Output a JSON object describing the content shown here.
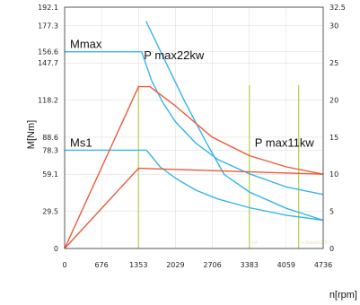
{
  "chart_data": {
    "type": "line",
    "xlabel": "n[rpm]",
    "ylabel": "M[Nm]",
    "y2label": "",
    "x_ticks": [
      0,
      676,
      1353,
      2029,
      2706,
      3383,
      4059,
      4736
    ],
    "xlim": [
      0,
      4736
    ],
    "y_ticks": [
      0,
      29.5,
      59.1,
      78.3,
      88.6,
      118.2,
      147.7,
      156.6,
      177.3,
      192.1
    ],
    "ylim": [
      0,
      192.1
    ],
    "y2_ticks": [
      0,
      5,
      10,
      15,
      20,
      25,
      30,
      32.5
    ],
    "y2lim": [
      0,
      32.5
    ],
    "grid": true,
    "colors": {
      "torque": "#34b6e8",
      "power": "#ec5a3c",
      "marker": "#b8d45c",
      "frame": "#333333",
      "grid": "#d9d9d9"
    },
    "annotations": [
      {
        "text": "Mmax",
        "x": 0,
        "y": 156.6
      },
      {
        "text": "P max22kw",
        "x": 1353,
        "y": 147.7
      },
      {
        "text": "Ms1",
        "x": 0,
        "y": 78.3
      },
      {
        "text": "P max11kw",
        "x": 3383,
        "y": 78.3
      }
    ],
    "marker_labels": [
      {
        "text": "n2",
        "x": 3383
      },
      {
        "text": "n max/n2/3",
        "x": 4287
      }
    ],
    "markers_x": [
      1353,
      3383,
      4287
    ],
    "series": [
      {
        "axis": "left",
        "color": "torque",
        "x": [
          0,
          1410,
          1600,
          1800,
          2029,
          2400,
          2800,
          3383,
          4059,
          4736
        ],
        "y": [
          156.6,
          156.6,
          133.0,
          116.0,
          101.0,
          84.0,
          71.0,
          59.5,
          49.0,
          43.0
        ]
      },
      {
        "axis": "left",
        "color": "torque",
        "x": [
          0,
          1500,
          1750,
          2029,
          2400,
          2800,
          3383,
          4059,
          4736
        ],
        "y": [
          78.3,
          78.3,
          65.0,
          56.0,
          46.5,
          39.5,
          32.5,
          26.5,
          22.5
        ]
      },
      {
        "axis": "left",
        "color": "torque",
        "x": [
          1490,
          1800,
          2200,
          2600,
          2920,
          3383,
          4059,
          4736
        ],
        "y": [
          181.0,
          153.0,
          117.0,
          84.0,
          59.0,
          45.0,
          32.0,
          22.5
        ]
      },
      {
        "axis": "right",
        "color": "power",
        "x": [
          0,
          1353,
          1560,
          2029,
          2700,
          3383,
          4059,
          4736
        ],
        "y": [
          0,
          21.8,
          21.8,
          19.2,
          15.0,
          12.5,
          11.0,
          10.0
        ]
      },
      {
        "axis": "right",
        "color": "power",
        "x": [
          0,
          1353,
          4736
        ],
        "y": [
          0,
          10.8,
          10.0
        ]
      }
    ]
  }
}
